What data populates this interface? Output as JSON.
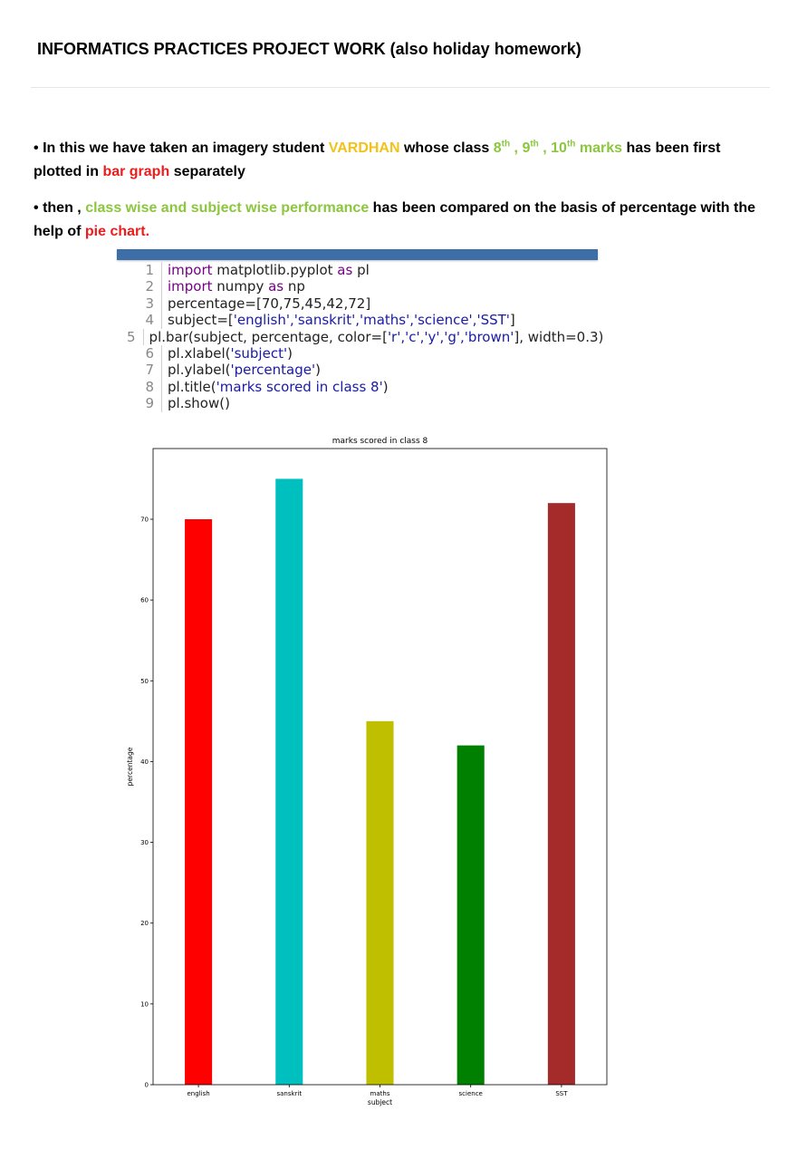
{
  "heading": "INFORMATICS PRACTICES PROJECT WORK (also holiday homework)",
  "para1": {
    "bullet": "•",
    "t1": "In this we have taken an imagery student",
    "name": "VARDHAN",
    "t2": "whose class",
    "c1": "8",
    "s1": "th",
    "sep1": ",",
    "c2": "9",
    "s2": "th",
    "sep2": ",",
    "c3": "10",
    "s3": "th",
    "marks": "marks",
    "t3": "has been first plotted in",
    "bar_graph": "bar graph",
    "t4": "separately"
  },
  "para2": {
    "bullet": "•",
    "t1": "then ,",
    "highlight": "class wise and subject wise performance",
    "t2": "has been compared on the basis of percentage with the help of",
    "pie": "pie chart."
  },
  "code": {
    "numbers": [
      "1",
      "2",
      "3",
      "4",
      "5",
      "6",
      "7",
      "8",
      "9"
    ],
    "l1": {
      "a": "import",
      "b": " matplotlib.pyplot ",
      "c": "as",
      "d": " pl"
    },
    "l2": {
      "a": "import",
      "b": " numpy ",
      "c": "as",
      "d": " np"
    },
    "l3": {
      "a": "percentage=[70,75,45,42,72]"
    },
    "l4": {
      "a": "subject=[",
      "b": "'english','sanskrit','maths','science','SST'",
      "c": "]"
    },
    "l5": {
      "a": "pl.bar(subject, percentage, color=[",
      "b": "'r','c','y','g','brown'",
      "c": "], width=0.3)"
    },
    "l6": {
      "a": "pl.xlabel(",
      "b": "'subject'",
      "c": ")"
    },
    "l7": {
      "a": "pl.ylabel(",
      "b": "'percentage'",
      "c": ")"
    },
    "l8": {
      "a": "pl.title(",
      "b": "'marks scored in class 8'",
      "c": ")"
    },
    "l9": {
      "a": "pl.show()"
    }
  },
  "chart_data": {
    "type": "bar",
    "title": "marks scored in class 8",
    "xlabel": "subject",
    "ylabel": "percentage",
    "categories": [
      "english",
      "sanskrit",
      "maths",
      "science",
      "SST"
    ],
    "values": [
      70,
      75,
      45,
      42,
      72
    ],
    "colors": [
      "#ff0000",
      "#00bfbf",
      "#bfbf00",
      "#008000",
      "#a52a2a"
    ],
    "yticks": [
      "0",
      "10",
      "20",
      "30",
      "40",
      "50",
      "60",
      "70"
    ],
    "ylim": [
      0,
      78.75
    ],
    "grid": false
  }
}
